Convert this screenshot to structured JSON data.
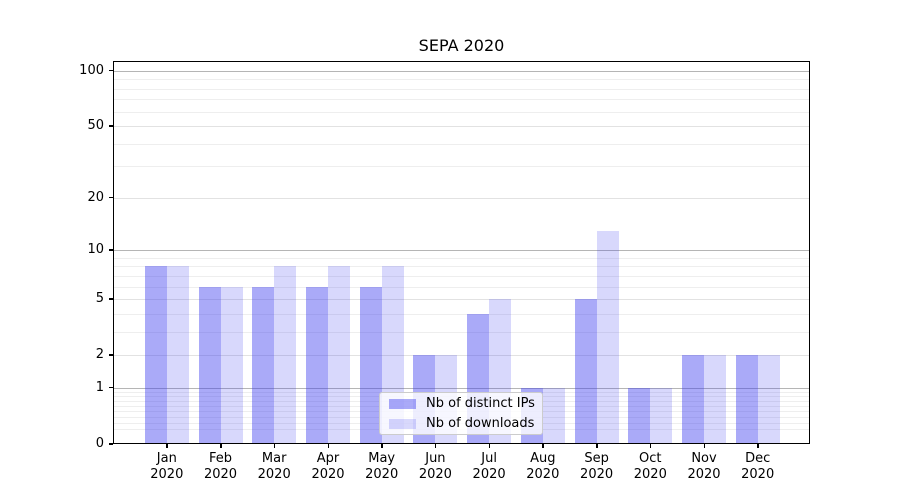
{
  "title": "SEPA 2020",
  "chart_data": {
    "type": "bar",
    "title": "SEPA 2020",
    "categories": [
      "Jan 2020",
      "Feb 2020",
      "Mar 2020",
      "Apr 2020",
      "May 2020",
      "Jun 2020",
      "Jul 2020",
      "Aug 2020",
      "Sep 2020",
      "Oct 2020",
      "Nov 2020",
      "Dec 2020"
    ],
    "series": [
      {
        "name": "Nb of distinct IPs",
        "color": "rgba(62,62,240,0.44)",
        "values": [
          8,
          6,
          6,
          6,
          6,
          2,
          4,
          1,
          5,
          1,
          2,
          2
        ]
      },
      {
        "name": "Nb of downloads",
        "color": "rgba(62,62,240,0.20)",
        "values": [
          8,
          6,
          8,
          8,
          8,
          2,
          5,
          1,
          13,
          1,
          2,
          2
        ]
      }
    ],
    "xlabel": "",
    "ylabel": "",
    "yscale": "log(1+y)",
    "ylim": [
      0,
      113
    ],
    "ytick_values": [
      0,
      1,
      2,
      5,
      10,
      20,
      50,
      100
    ],
    "ytick_labels": [
      "0",
      "1",
      "2",
      "5",
      "10",
      "20",
      "50",
      "100"
    ],
    "grid": {
      "decade_lines": [
        1,
        10,
        100
      ],
      "labeled_lines": [
        2,
        5,
        20,
        50
      ],
      "minor_lines": [
        0.2,
        0.3,
        0.4,
        0.5,
        0.6,
        0.7,
        0.8,
        0.9,
        3,
        4,
        6,
        7,
        8,
        9,
        30,
        40,
        60,
        70,
        80,
        90
      ],
      "decade_color": "#b5b5b5",
      "labeled_color": "#e2e2e2",
      "minor_color": "#eeeeee"
    },
    "legend_position": "lower-center"
  },
  "legend": {
    "background": "rgba(255,255,255,0.8)",
    "border_color": "#cccccc"
  },
  "axes": {
    "spine_color": "#000000",
    "tick_color": "#000000",
    "label_color": "#000000"
  }
}
